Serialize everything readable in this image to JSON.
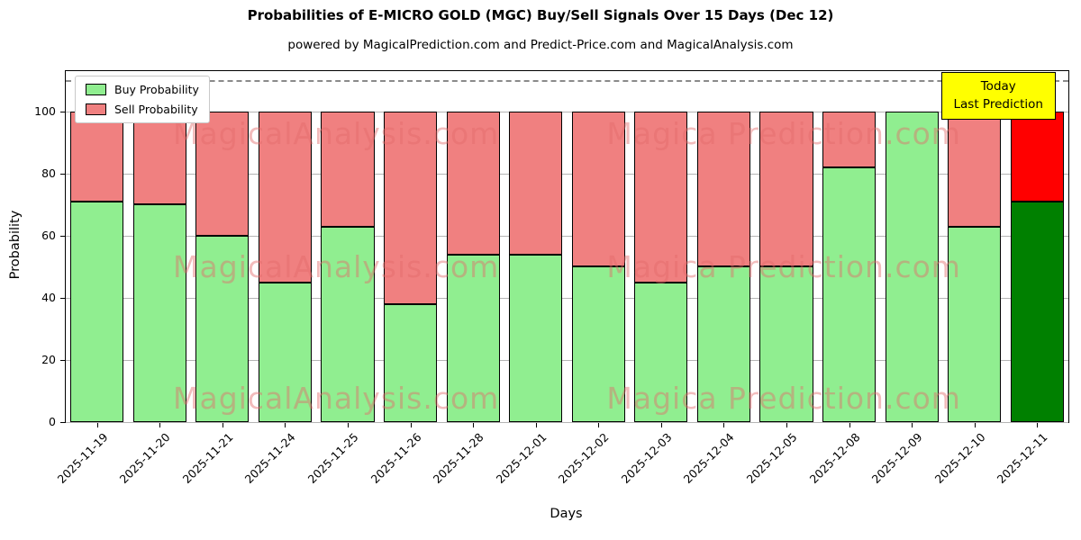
{
  "title": "Probabilities of E-MICRO GOLD (MGC) Buy/Sell Signals Over 15 Days (Dec 12)",
  "subtitle": "powered by MagicalPrediction.com and Predict-Price.com and MagicalAnalysis.com",
  "annotation": {
    "line1": "Today",
    "line2": "Last Prediction"
  },
  "watermarks": [
    "MagicalAnalysis.com",
    "Magica Prediction.com"
  ],
  "chart_data": {
    "type": "bar",
    "stacked": true,
    "title": "Probabilities of E-MICRO GOLD (MGC) Buy/Sell Signals Over 15 Days (Dec 12)",
    "xlabel": "Days",
    "ylabel": "Probability",
    "categories": [
      "2025-11-19",
      "2025-11-20",
      "2025-11-21",
      "2025-11-24",
      "2025-11-25",
      "2025-11-26",
      "2025-11-28",
      "2025-12-01",
      "2025-12-02",
      "2025-12-03",
      "2025-12-04",
      "2025-12-05",
      "2025-12-08",
      "2025-12-09",
      "2025-12-10",
      "2025-12-11"
    ],
    "series": [
      {
        "name": "Buy Probability",
        "values": [
          71,
          70,
          60,
          45,
          63,
          38,
          54,
          54,
          50,
          45,
          50,
          50,
          82,
          100,
          63,
          71
        ]
      },
      {
        "name": "Sell Probability",
        "values": [
          29,
          30,
          40,
          55,
          37,
          62,
          46,
          46,
          50,
          55,
          50,
          50,
          18,
          0,
          37,
          29
        ]
      }
    ],
    "yticks": [
      0,
      20,
      40,
      60,
      80,
      100
    ],
    "ylim": [
      0,
      113
    ],
    "dashed_line_y": 110,
    "highlight_index": 15,
    "legend_position": "upper-left",
    "grid": true,
    "colors": {
      "buy": "#90ee90",
      "sell": "#f08080",
      "buy_highlight": "#008000",
      "sell_highlight": "#ff0000",
      "annotation_bg": "#ffff00",
      "grid": "#b4b4b4"
    }
  }
}
